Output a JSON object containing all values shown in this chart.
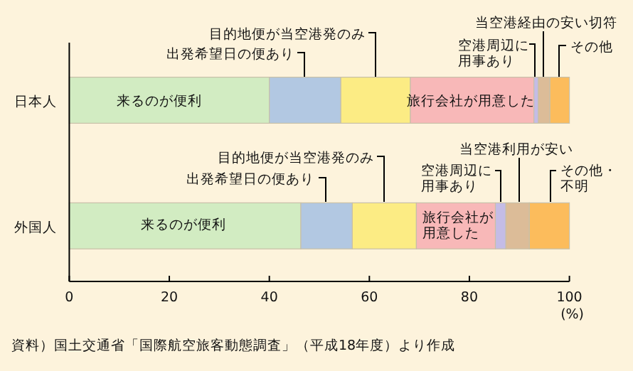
{
  "chart_data": {
    "type": "bar",
    "orientation": "horizontal",
    "stacked": true,
    "categories": [
      "日本人",
      "外国人"
    ],
    "xlabel": "(%)",
    "xlim": [
      0,
      100
    ],
    "xticks": [
      0,
      20,
      40,
      60,
      80,
      100
    ],
    "grid": false,
    "legend": false,
    "series": [
      {
        "color": "#d2ecc2",
        "values": [
          40.0,
          46.3
        ]
      },
      {
        "color": "#b2c8e2",
        "values": [
          14.3,
          10.3
        ]
      },
      {
        "color": "#fcec84",
        "values": [
          13.9,
          12.8
        ]
      },
      {
        "color": "#f8b8b8",
        "values": [
          24.7,
          15.8
        ]
      },
      {
        "color": "#c4bce6",
        "values": [
          0.9,
          2.1
        ]
      },
      {
        "color": "#dcbc98",
        "values": [
          2.3,
          4.7
        ]
      },
      {
        "color": "#fcbc5c",
        "values": [
          3.9,
          8.0
        ]
      }
    ],
    "annotations": [
      "来るのが便利",
      "旅行会社が用意した",
      "出発希望日の便あり",
      "目的地便が当空港発のみ",
      "空港周辺に用事あり",
      "当空港経由の安い切符",
      "その他",
      "来るのが便利",
      "旅行会社が用意した",
      "出発希望日の便あり",
      "目的地便が当空港発のみ",
      "空港周辺に用事あり",
      "当空港利用が安い",
      "その他・不明",
      "資料）国土交通省「国際航空旅客動態調査」（平成18年度）より作成"
    ]
  }
}
